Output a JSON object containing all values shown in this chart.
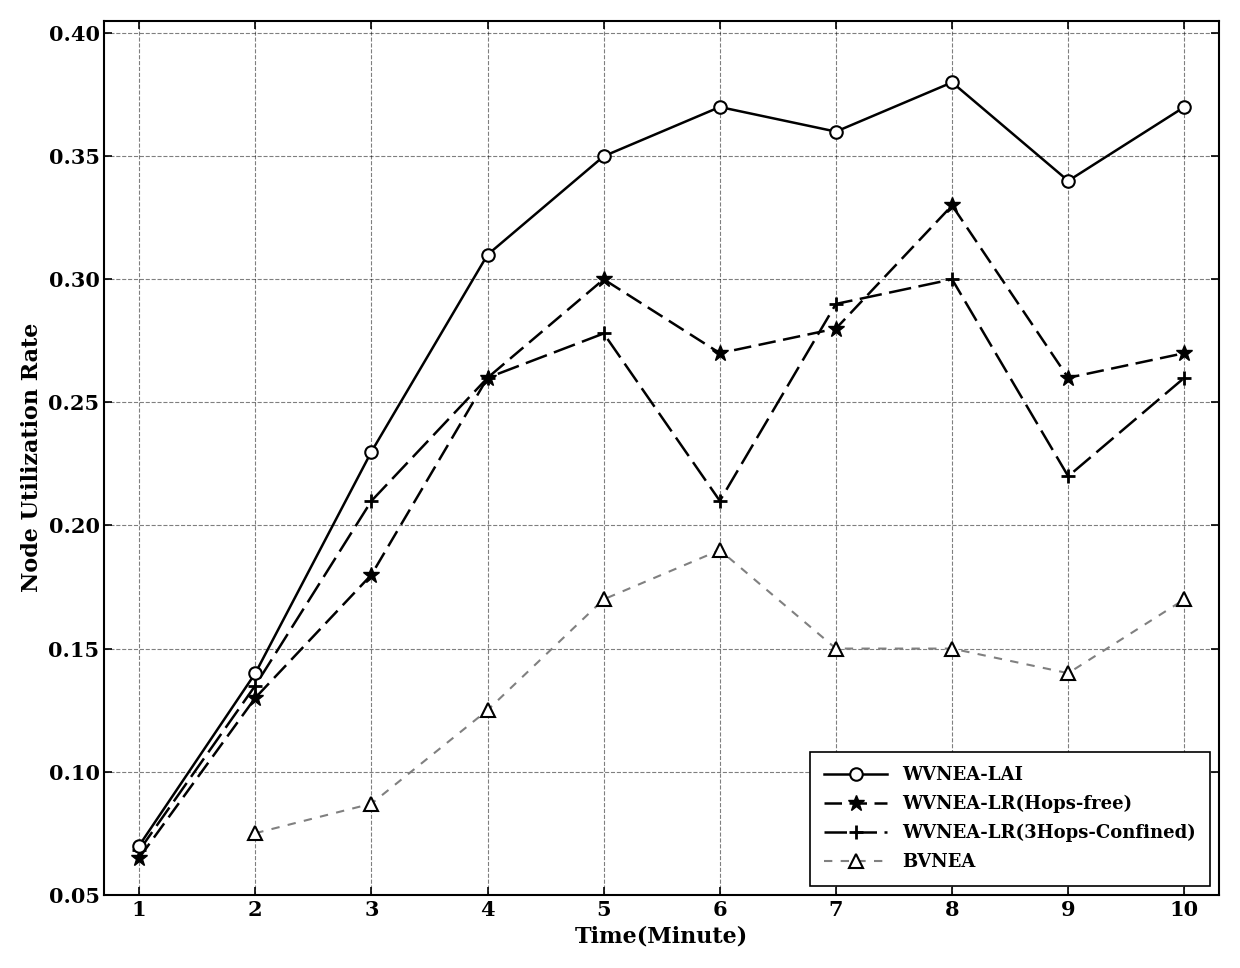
{
  "x": [
    1,
    2,
    3,
    4,
    5,
    6,
    7,
    8,
    9,
    10
  ],
  "WVNEA_LAI": [
    0.07,
    0.14,
    0.23,
    0.31,
    0.35,
    0.37,
    0.36,
    0.38,
    0.34,
    0.37
  ],
  "WVNEA_LR_free": [
    0.065,
    0.13,
    0.18,
    0.26,
    0.3,
    0.27,
    0.28,
    0.33,
    0.26,
    0.27
  ],
  "WVNEA_LR_3hops": [
    0.068,
    0.135,
    0.21,
    0.26,
    0.278,
    0.21,
    0.29,
    0.3,
    0.22,
    0.26
  ],
  "BVNEA": [
    null,
    0.075,
    0.087,
    0.125,
    0.17,
    0.19,
    0.15,
    0.15,
    0.14,
    0.17
  ],
  "xlabel": "Time(Minute)",
  "ylabel": "Node Utilization Rate",
  "xlim": [
    0.7,
    10.3
  ],
  "ylim": [
    0.05,
    0.405
  ],
  "yticks": [
    0.05,
    0.1,
    0.15,
    0.2,
    0.25,
    0.3,
    0.35,
    0.4
  ],
  "xticks": [
    1,
    2,
    3,
    4,
    5,
    6,
    7,
    8,
    9,
    10
  ],
  "fontsize_labels": 16,
  "fontsize_ticks": 15,
  "fontsize_legend": 13,
  "background_color": "#ffffff"
}
